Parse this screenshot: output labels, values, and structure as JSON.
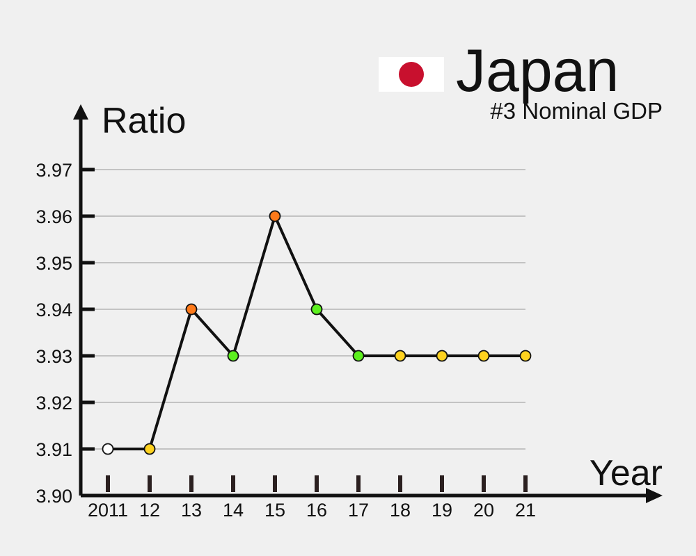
{
  "header": {
    "country": "Japan",
    "subtitle": "#3 Nominal GDP",
    "flag_icon": "japan-flag-icon",
    "flag_colors": {
      "field": "#ffffff",
      "disc": "#c8102e"
    }
  },
  "chart_data": {
    "type": "line",
    "xlabel": "Year",
    "ylabel": "Ratio",
    "categories": [
      "2011",
      "12",
      "13",
      "14",
      "15",
      "16",
      "17",
      "18",
      "19",
      "20",
      "21"
    ],
    "values": [
      3.91,
      3.91,
      3.94,
      3.93,
      3.96,
      3.94,
      3.93,
      3.93,
      3.93,
      3.93,
      3.93
    ],
    "point_colors": [
      "#ffffff",
      "#ffd21f",
      "#ff7a1a",
      "#5cf01e",
      "#ff7a1a",
      "#5cf01e",
      "#5cf01e",
      "#ffd21f",
      "#ffd21f",
      "#ffd21f",
      "#ffd21f"
    ],
    "ylim": [
      3.9,
      3.97
    ],
    "yticks": [
      "3.90",
      "3.91",
      "3.92",
      "3.93",
      "3.94",
      "3.95",
      "3.96",
      "3.97"
    ],
    "grid": true,
    "line_color": "#111111",
    "grid_color": "#b4b4b4"
  }
}
